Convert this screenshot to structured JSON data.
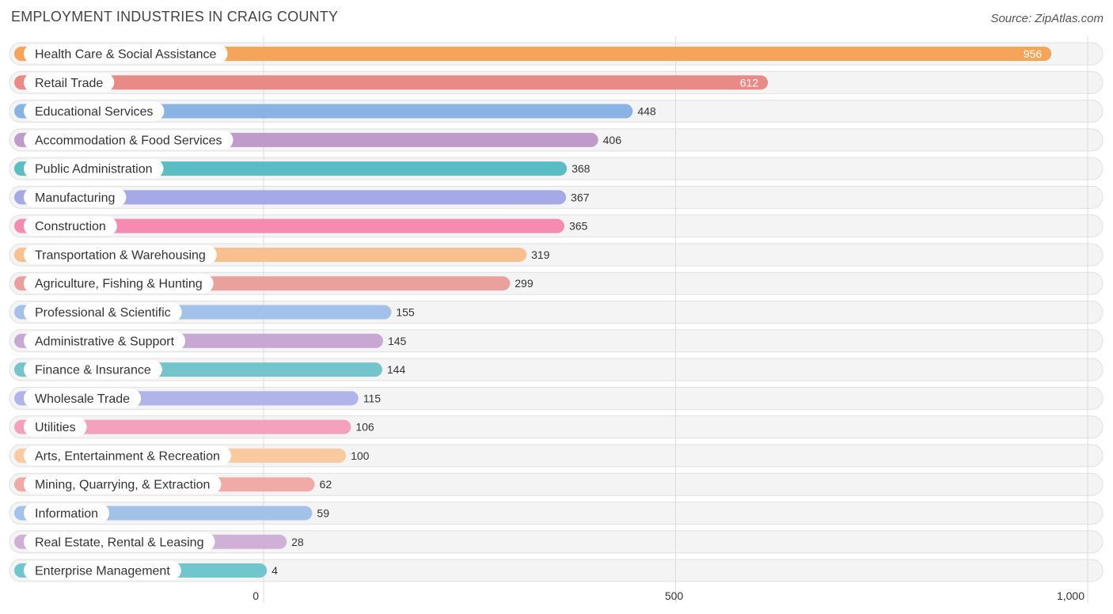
{
  "chart_data": {
    "type": "bar",
    "orientation": "horizontal",
    "title": "EMPLOYMENT INDUSTRIES IN CRAIG COUNTY",
    "source": "Source: ZipAtlas.com",
    "categories": [
      "Health Care & Social Assistance",
      "Retail Trade",
      "Educational Services",
      "Accommodation & Food Services",
      "Public Administration",
      "Manufacturing",
      "Construction",
      "Transportation & Warehousing",
      "Agriculture, Fishing & Hunting",
      "Professional & Scientific",
      "Administrative & Support",
      "Finance & Insurance",
      "Wholesale Trade",
      "Utilities",
      "Arts, Entertainment & Recreation",
      "Mining, Quarrying, & Extraction",
      "Information",
      "Real Estate, Rental & Leasing",
      "Enterprise Management"
    ],
    "values": [
      956,
      612,
      448,
      406,
      368,
      367,
      365,
      319,
      299,
      155,
      145,
      144,
      115,
      106,
      100,
      62,
      59,
      28,
      4
    ],
    "value_labels": [
      "956",
      "612",
      "448",
      "406",
      "368",
      "367",
      "365",
      "319",
      "299",
      "155",
      "145",
      "144",
      "115",
      "106",
      "100",
      "62",
      "59",
      "28",
      "4"
    ],
    "colors": [
      "#f5a45a",
      "#e98a86",
      "#89b3e3",
      "#bf9bc9",
      "#5bbdc4",
      "#a5a9e6",
      "#f78ab0",
      "#f8c08e",
      "#eaa09c",
      "#a3c2ea",
      "#c7a8d2",
      "#74c4cb",
      "#b1b4ea",
      "#f5a1bd",
      "#f9c9a0",
      "#f0aba7",
      "#a3c2ea",
      "#cfb0d6",
      "#6fc6cd"
    ],
    "xlim": [
      0,
      1000
    ],
    "xticks": [
      0,
      500,
      1000
    ],
    "xtick_labels": [
      "0",
      "500",
      "1,000"
    ],
    "xlabel": "",
    "ylabel": "",
    "grid": true
  }
}
